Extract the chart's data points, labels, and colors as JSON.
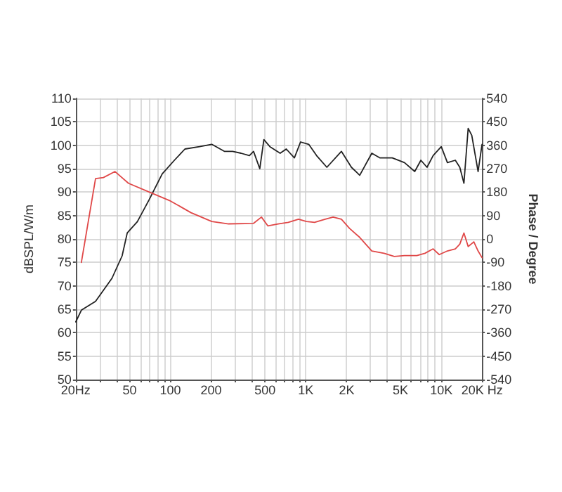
{
  "chart_data": {
    "type": "line",
    "xlabel": null,
    "ylabel": "dBSPL/W/m",
    "y2label": "Phase / Degree",
    "log": "x",
    "grid": true,
    "marker": "none",
    "line_style": "solid",
    "xlim": [
      20,
      20000
    ],
    "xticks": [
      {
        "value": 20,
        "label": "20Hz"
      },
      {
        "value": 30,
        "label": null
      },
      {
        "value": 40,
        "label": null
      },
      50,
      {
        "value": 60,
        "label": null
      },
      {
        "value": 70,
        "label": null
      },
      {
        "value": 80,
        "label": null
      },
      {
        "value": 90,
        "label": null
      },
      100,
      200,
      {
        "value": 300,
        "label": null
      },
      {
        "value": 400,
        "label": null
      },
      500,
      {
        "value": 600,
        "label": null
      },
      {
        "value": 700,
        "label": null
      },
      {
        "value": 800,
        "label": null
      },
      {
        "value": 900,
        "label": null
      },
      {
        "value": 1000,
        "label": "1K"
      },
      {
        "value": 2000,
        "label": "2K"
      },
      {
        "value": 3000,
        "label": null
      },
      {
        "value": 4000,
        "label": null
      },
      {
        "value": 5000,
        "label": "5K"
      },
      {
        "value": 6000,
        "label": null
      },
      {
        "value": 7000,
        "label": null
      },
      {
        "value": 8000,
        "label": null
      },
      {
        "value": 9000,
        "label": null
      },
      {
        "value": 10000,
        "label": "10K"
      },
      {
        "value": 20000,
        "label": "20K Hz"
      }
    ],
    "ylim": [
      50,
      110
    ],
    "yticks": [
      50,
      55,
      60,
      65,
      70,
      75,
      80,
      85,
      90,
      95,
      100,
      105,
      110
    ],
    "y2lim": [
      -540,
      540
    ],
    "y2ticks": [
      -540,
      -450,
      -360,
      -270,
      -180,
      -90,
      0,
      90,
      180,
      270,
      360,
      450,
      540
    ],
    "series": [
      {
        "color": "#222222",
        "x": [
          20,
          22,
          28,
          37,
          44,
          48,
          57,
          70,
          87,
          107,
          128,
          164,
          202,
          250,
          288,
          332,
          383,
          411,
          457,
          490,
          543,
          646,
          717,
          823,
          914,
          1050,
          1200,
          1430,
          1830,
          2170,
          2500,
          3070,
          3530,
          4350,
          5350,
          6370,
          7070,
          7850,
          8710,
          10000,
          11100,
          12700,
          13700,
          14700,
          15800,
          16800,
          18700,
          20000
        ],
        "values": [
          62.3,
          64.8,
          66.7,
          71.6,
          76.4,
          81.3,
          83.7,
          88.5,
          93.9,
          96.8,
          99.2,
          99.7,
          100.2,
          98.7,
          98.7,
          98.3,
          97.8,
          98.7,
          95,
          101.2,
          99.7,
          98.3,
          99.2,
          97.3,
          100.7,
          100.2,
          97.8,
          95.3,
          98.7,
          95.3,
          93.6,
          98.3,
          97.3,
          97.3,
          96.3,
          94.4,
          96.8,
          95.3,
          97.8,
          99.7,
          96.3,
          96.8,
          95.3,
          91.9,
          103.6,
          102.1,
          94.4,
          100.2
        ]
      },
      {
        "color": "#e04848",
        "axis": "y2",
        "x": [
          22,
          28,
          32,
          39,
          49,
          70,
          100,
          142,
          202,
          269,
          411,
          470,
          525,
          624,
          742,
          883,
          1010,
          1160,
          1390,
          1590,
          1830,
          2100,
          2500,
          3070,
          3780,
          4500,
          5350,
          6600,
          7580,
          8710,
          9660,
          11100,
          12700,
          13700,
          14700,
          15800,
          17400,
          18700,
          20000
        ],
        "values": [
          -90,
          232,
          236,
          259,
          214,
          180,
          146,
          101,
          67,
          58,
          60,
          84,
          50,
          58,
          64,
          76,
          67,
          64,
          76,
          84,
          76,
          41,
          6,
          -46,
          -55,
          -67,
          -64,
          -64,
          -55,
          -38,
          -60,
          -46,
          -38,
          -20,
          23,
          -29,
          -11,
          -46,
          -72
        ]
      }
    ]
  }
}
